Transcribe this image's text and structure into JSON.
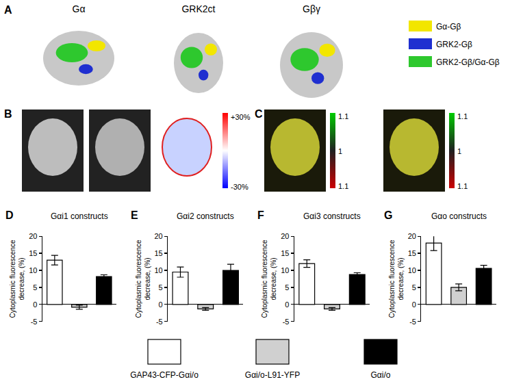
{
  "panels": {
    "A": {
      "label": "A",
      "structures": [
        {
          "label": "Gα"
        },
        {
          "label": "GRK2ct"
        },
        {
          "label": "Gβγ"
        }
      ],
      "legend": [
        {
          "label": "Gα-Gβ",
          "color": "#f2e600"
        },
        {
          "label": "GRK2-Gβ",
          "color": "#1f2fd0"
        },
        {
          "label": "GRK2-Gβ/Gα-Gβ",
          "color": "#2ec82e"
        }
      ]
    },
    "B": {
      "label": "B",
      "colorbar": {
        "top": "+30%",
        "bottom": "-30%"
      }
    },
    "C": {
      "label": "C",
      "colorbar_labels": [
        "1.1",
        "1",
        "1.1"
      ]
    }
  },
  "chart_data": [
    {
      "type": "bar",
      "panel": "D",
      "title": "Gαi1 constructs",
      "y_label": "Cytoplasmic fluorescence decrease, (%)",
      "categories": [
        "GAP43-CFP-Gαi/o",
        "Gαi/o-L91-YFP",
        "Gαi/o"
      ],
      "values": [
        13,
        -0.8,
        8.2
      ],
      "errors": [
        1.4,
        0.6,
        0.5
      ],
      "colors": [
        "#ffffff",
        "#d0d0d0",
        "#000000"
      ],
      "ylim": [
        -5,
        20
      ],
      "yticks": [
        -5,
        0,
        5,
        10,
        15,
        20
      ],
      "tick_labels": "y",
      "legend": "bottom"
    },
    {
      "type": "bar",
      "panel": "E",
      "title": "Gαi2 constructs",
      "y_label": "Cytoplasmic fluorescence decrease, (%)",
      "categories": [
        "GAP43-CFP-Gαi/o",
        "Gαi/o-L91-YFP",
        "Gαi/o"
      ],
      "values": [
        9.5,
        -1.3,
        10
      ],
      "errors": [
        1.5,
        0.4,
        1.8
      ],
      "colors": [
        "#ffffff",
        "#d0d0d0",
        "#000000"
      ],
      "ylim": [
        -5,
        20
      ],
      "yticks": [
        -5,
        0,
        5,
        10,
        15,
        20
      ],
      "tick_labels": "y",
      "legend": "bottom"
    },
    {
      "type": "bar",
      "panel": "F",
      "title": "Gαi3 constructs",
      "y_label": "Cytoplasmic fluorescence decrease, (%)",
      "categories": [
        "GAP43-CFP-Gαi/o",
        "Gαi/o-L91-YFP",
        "Gαi/o"
      ],
      "values": [
        12,
        -1.3,
        8.8
      ],
      "errors": [
        1.1,
        0.4,
        0.5
      ],
      "colors": [
        "#ffffff",
        "#d0d0d0",
        "#000000"
      ],
      "ylim": [
        -5,
        20
      ],
      "yticks": [
        -5,
        0,
        5,
        10,
        15,
        20
      ],
      "tick_labels": "y",
      "legend": "bottom"
    },
    {
      "type": "bar",
      "panel": "G",
      "title": "Gαo constructs",
      "y_label": "Cytoplasmic fluorescence decrease, (%)",
      "categories": [
        "GAP43-CFP-Gαi/o",
        "Gαi/o-L91-YFP",
        "Gαi/o"
      ],
      "values": [
        18,
        5,
        10.6
      ],
      "errors": [
        2.2,
        1,
        0.9
      ],
      "colors": [
        "#ffffff",
        "#d0d0d0",
        "#000000"
      ],
      "ylim": [
        -5,
        20
      ],
      "yticks": [
        -5,
        0,
        5,
        10,
        15,
        20
      ],
      "tick_labels": "y",
      "legend": "bottom"
    }
  ]
}
